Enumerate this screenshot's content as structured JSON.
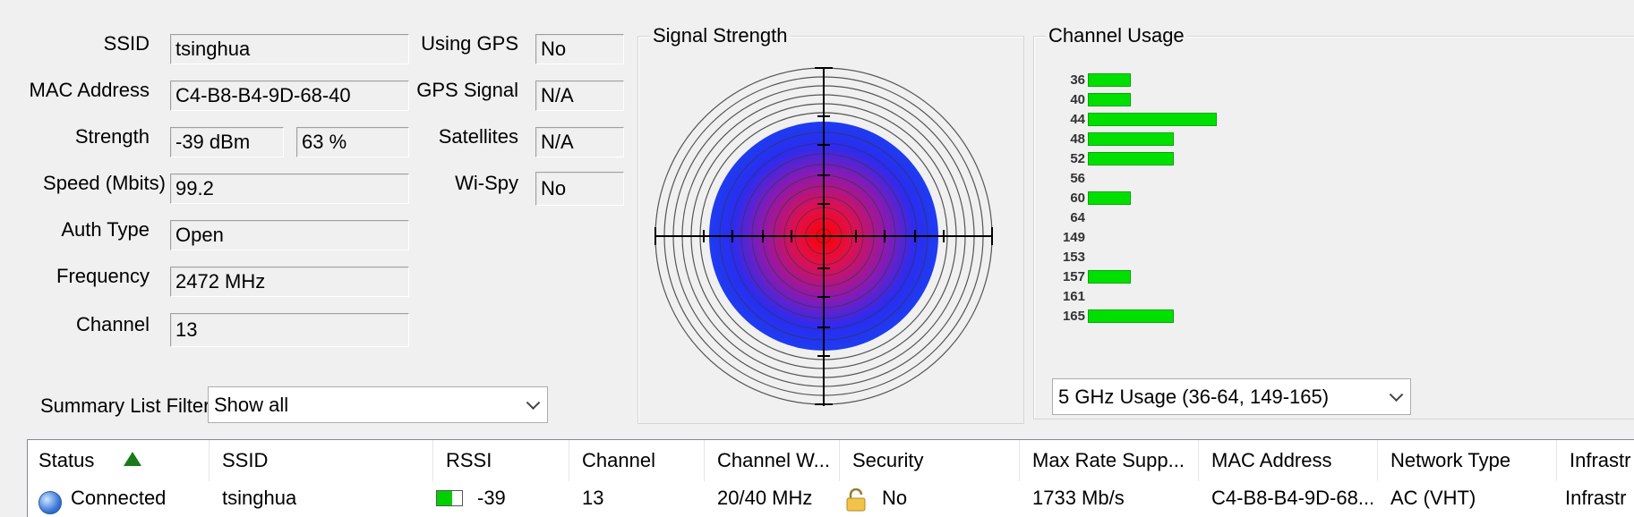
{
  "info": {
    "ssid_label": "SSID",
    "ssid_value": "tsinghua",
    "mac_label": "MAC Address",
    "mac_value": "C4-B8-B4-9D-68-40",
    "strength_label": "Strength",
    "strength_dbm": "-39 dBm",
    "strength_pct": "63 %",
    "speed_label": "Speed (Mbits)",
    "speed_value": "99.2",
    "auth_label": "Auth Type",
    "auth_value": "Open",
    "freq_label": "Frequency",
    "freq_value": "2472 MHz",
    "channel_label": "Channel",
    "channel_value": "13",
    "gps_label": "Using GPS",
    "gps_value": "No",
    "gps_signal_label": "GPS Signal",
    "gps_signal_value": "N/A",
    "satellites_label": "Satellites",
    "satellites_value": "N/A",
    "wispy_label": "Wi-Spy",
    "wispy_value": "No"
  },
  "filter": {
    "label": "Summary List Filter:",
    "selected": "Show all"
  },
  "signal_panel": {
    "title": "Signal Strength"
  },
  "channel_panel": {
    "title": "Channel Usage",
    "band_selected": "5 GHz Usage (36-64, 149-165)",
    "channels": [
      {
        "ch": "36",
        "usage": 1
      },
      {
        "ch": "40",
        "usage": 1
      },
      {
        "ch": "44",
        "usage": 3
      },
      {
        "ch": "48",
        "usage": 2
      },
      {
        "ch": "52",
        "usage": 2
      },
      {
        "ch": "56",
        "usage": 0
      },
      {
        "ch": "60",
        "usage": 1
      },
      {
        "ch": "64",
        "usage": 0
      },
      {
        "ch": "149",
        "usage": 0
      },
      {
        "ch": "153",
        "usage": 0
      },
      {
        "ch": "157",
        "usage": 1
      },
      {
        "ch": "161",
        "usage": 0
      },
      {
        "ch": "165",
        "usage": 2
      }
    ],
    "bar_color": "#00e000"
  },
  "table": {
    "headers": [
      "Status",
      "SSID",
      "RSSI",
      "Channel",
      "Channel W...",
      "Security",
      "Max Rate Supp...",
      "MAC Address",
      "Network Type",
      "Infrastr"
    ],
    "row": {
      "status": "Connected",
      "ssid": "tsinghua",
      "rssi": "-39",
      "channel": "13",
      "channel_width": "20/40 MHz",
      "security": "No",
      "max_rate": "1733 Mb/s",
      "mac": "C4-B8-B4-9D-68...",
      "network_type": "AC (VHT)",
      "infra": "Infrastr"
    }
  }
}
